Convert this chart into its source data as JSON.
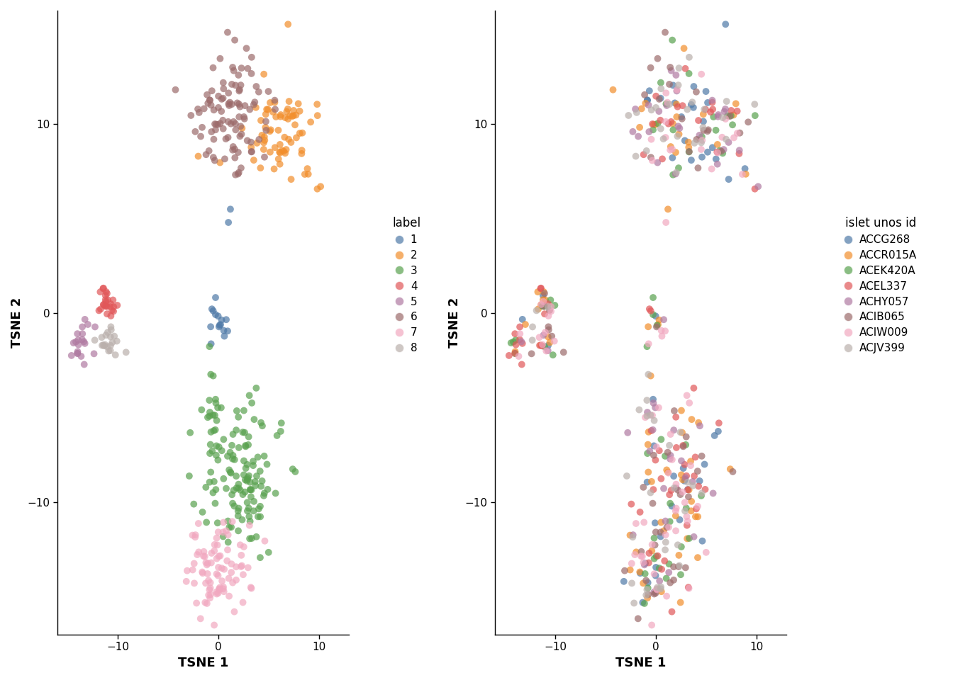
{
  "label_colors": {
    "1": "#4e79a7",
    "2": "#f28e2b",
    "3": "#59a14f",
    "4": "#e15759",
    "5": "#b07aa1",
    "6": "#9c6b6b",
    "7": "#f1a8c0",
    "8": "#bab0ac"
  },
  "batch_colors": {
    "ACCG268": "#4e79a7",
    "ACCR015A": "#f28e2b",
    "ACEK420A": "#59a14f",
    "ACEL337": "#e15759",
    "ACHY057": "#b07aa1",
    "ACIB065": "#9c6b6b",
    "ACIW009": "#f1a8c0",
    "ACJV399": "#bab0ac"
  },
  "point_size": 50,
  "alpha": 0.7,
  "xlim": [
    -16,
    13
  ],
  "ylim": [
    -17,
    16
  ],
  "xlabel": "TSNE 1",
  "ylabel": "TSNE 2",
  "legend_title_left": "label",
  "legend_title_right": "islet unos id",
  "bg_color": "#ffffff"
}
